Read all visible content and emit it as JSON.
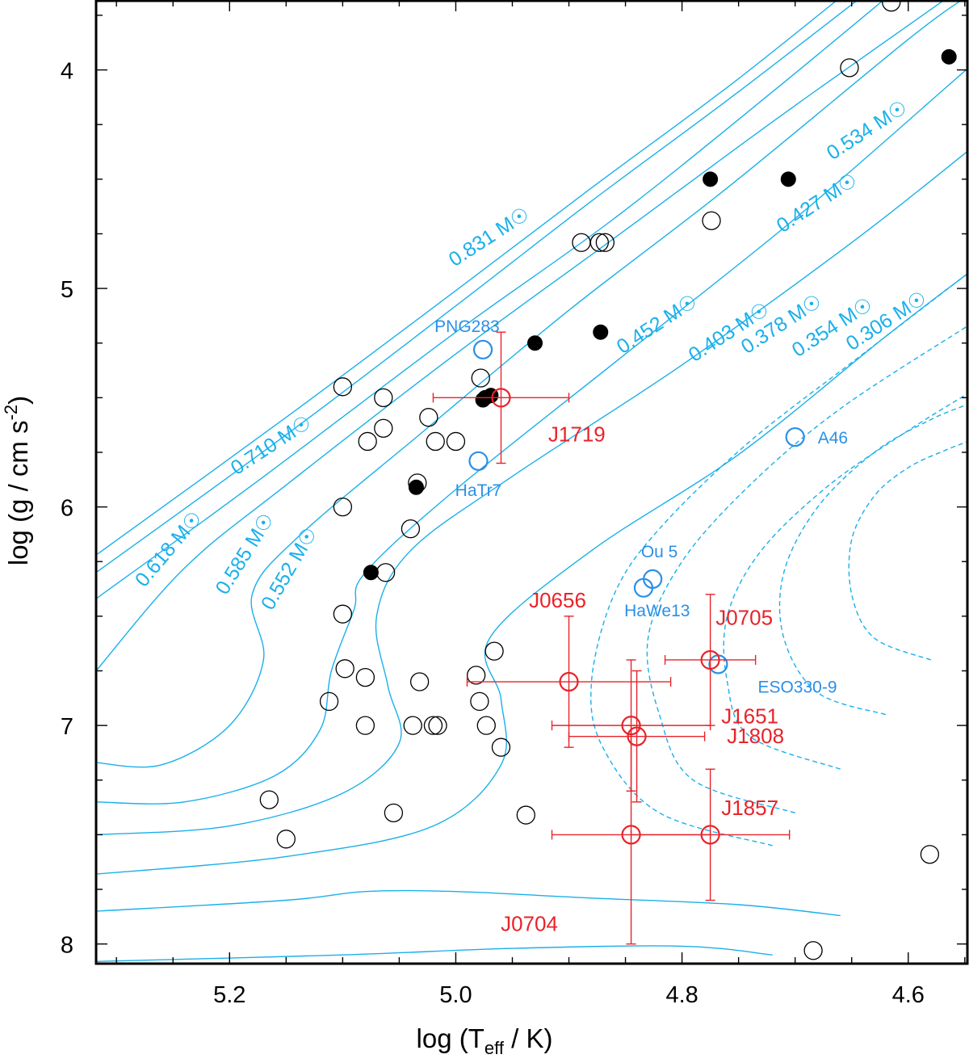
{
  "chart_data": {
    "type": "scatter",
    "title": "",
    "xlabel": "log (T",
    "xlabel_sub": "eff",
    "xlabel_end": " / K)",
    "ylabel": "log (g / cm s",
    "ylabel_sup": "-2",
    "ylabel_end": ")",
    "xlim": [
      5.318,
      4.547
    ],
    "ylim": [
      3.68,
      8.09
    ],
    "x_ticks": [
      5.2,
      5.0,
      4.8,
      4.6
    ],
    "x_tick_labels": [
      "5.2",
      "5.0",
      "4.8",
      "4.6"
    ],
    "y_ticks": [
      4,
      5,
      6,
      7,
      8
    ],
    "y_tick_labels": [
      "4",
      "5",
      "6",
      "7",
      "8"
    ],
    "colors": {
      "track": "#1ab0ea",
      "target": "#e8232a",
      "comparison": "#2b8fe6",
      "sample": "#000000"
    },
    "tracks": [
      {
        "label": "0.831 M☉",
        "style": "solid",
        "points": [
          [
            5.318,
            6.22
          ],
          [
            5.15,
            5.59
          ],
          [
            5.0,
            5.01
          ],
          [
            4.88,
            4.54
          ],
          [
            4.75,
            4.04
          ],
          [
            4.62,
            3.5
          ]
        ]
      },
      {
        "label": "0.710 M☉",
        "style": "solid",
        "points": [
          [
            5.318,
            6.3
          ],
          [
            5.15,
            5.67
          ],
          [
            5.0,
            5.08
          ],
          [
            4.88,
            4.6
          ],
          [
            4.75,
            4.1
          ],
          [
            4.6,
            3.5
          ]
        ]
      },
      {
        "label": "0.618 M☉",
        "style": "solid",
        "points": [
          [
            5.318,
            6.42
          ],
          [
            5.18,
            5.9
          ],
          [
            5.0,
            5.2
          ],
          [
            4.86,
            4.68
          ],
          [
            4.72,
            4.1
          ],
          [
            4.58,
            3.5
          ]
        ]
      },
      {
        "label": "0.585 M☉",
        "style": "solid",
        "points": [
          [
            5.318,
            6.75
          ],
          [
            5.24,
            6.28
          ],
          [
            5.15,
            5.9
          ],
          [
            5.0,
            5.3
          ],
          [
            4.86,
            4.77
          ],
          [
            4.71,
            4.2
          ],
          [
            4.56,
            3.65
          ]
        ]
      },
      {
        "label": "0.552 M☉",
        "style": "solid",
        "points": [
          [
            5.318,
            7.17
          ],
          [
            5.26,
            7.18
          ],
          [
            5.2,
            7.0
          ],
          [
            5.17,
            6.7
          ],
          [
            5.18,
            6.4
          ],
          [
            5.14,
            6.14
          ],
          [
            5.03,
            5.66
          ],
          [
            4.9,
            5.1
          ],
          [
            4.76,
            4.54
          ],
          [
            4.6,
            3.86
          ],
          [
            4.547,
            3.66
          ]
        ]
      },
      {
        "label": "0.534 M☉",
        "style": "solid",
        "points": [
          [
            5.318,
            7.35
          ],
          [
            5.24,
            7.35
          ],
          [
            5.16,
            7.23
          ],
          [
            5.12,
            7.02
          ],
          [
            5.11,
            6.75
          ],
          [
            5.09,
            6.47
          ],
          [
            5.08,
            6.3
          ],
          [
            5.0,
            5.92
          ],
          [
            4.85,
            5.3
          ],
          [
            4.7,
            4.68
          ],
          [
            4.56,
            4.05
          ],
          [
            4.547,
            3.99
          ]
        ]
      },
      {
        "label": "0.452 M☉",
        "style": "solid",
        "points": [
          [
            5.318,
            7.5
          ],
          [
            5.2,
            7.46
          ],
          [
            5.1,
            7.31
          ],
          [
            5.05,
            7.08
          ],
          [
            5.06,
            6.82
          ],
          [
            5.07,
            6.5
          ],
          [
            5.04,
            6.2
          ],
          [
            4.95,
            5.86
          ],
          [
            4.8,
            5.35
          ],
          [
            4.65,
            4.79
          ],
          [
            4.547,
            4.37
          ]
        ]
      },
      {
        "label": "",
        "style": "solid",
        "points": [
          [
            5.318,
            7.68
          ],
          [
            5.15,
            7.6
          ],
          [
            5.02,
            7.46
          ],
          [
            4.96,
            7.18
          ],
          [
            4.96,
            6.88
          ],
          [
            4.97,
            6.6
          ],
          [
            4.88,
            6.2
          ],
          [
            4.75,
            5.76
          ],
          [
            4.62,
            5.22
          ],
          [
            4.547,
            4.93
          ]
        ]
      },
      {
        "label": "",
        "style": "solid",
        "points": [
          [
            5.318,
            7.85
          ],
          [
            5.15,
            7.8
          ],
          [
            5.08,
            7.76
          ],
          [
            5.0,
            7.76
          ],
          [
            4.88,
            7.79
          ],
          [
            4.75,
            7.82
          ],
          [
            4.66,
            7.87
          ]
        ]
      },
      {
        "label": "",
        "style": "solid",
        "points": [
          [
            5.318,
            8.08
          ],
          [
            5.1,
            8.05
          ],
          [
            4.95,
            8.02
          ],
          [
            4.8,
            8.01
          ],
          [
            4.72,
            8.05
          ]
        ]
      },
      {
        "label": "0.427 M☉",
        "style": "dashed",
        "points": [
          [
            4.72,
            7.55
          ],
          [
            4.82,
            7.4
          ],
          [
            4.87,
            7.1
          ],
          [
            4.88,
            6.8
          ],
          [
            4.86,
            6.4
          ],
          [
            4.82,
            6.1
          ],
          [
            4.74,
            5.7
          ],
          [
            4.64,
            5.3
          ],
          [
            4.547,
            4.93
          ]
        ]
      },
      {
        "label": "0.403 M☉",
        "style": "dashed",
        "points": [
          [
            4.7,
            7.4
          ],
          [
            4.79,
            7.25
          ],
          [
            4.82,
            6.95
          ],
          [
            4.83,
            6.6
          ],
          [
            4.8,
            6.25
          ],
          [
            4.74,
            5.9
          ],
          [
            4.66,
            5.55
          ],
          [
            4.547,
            5.17
          ]
        ]
      },
      {
        "label": "0.378 M☉",
        "style": "dashed",
        "points": [
          [
            4.66,
            7.2
          ],
          [
            4.74,
            7.05
          ],
          [
            4.76,
            6.8
          ],
          [
            4.76,
            6.5
          ],
          [
            4.73,
            6.2
          ],
          [
            4.67,
            5.9
          ],
          [
            4.6,
            5.65
          ],
          [
            4.547,
            5.48
          ]
        ]
      },
      {
        "label": "0.354 M☉",
        "style": "dashed",
        "points": [
          [
            4.62,
            6.95
          ],
          [
            4.68,
            6.85
          ],
          [
            4.71,
            6.6
          ],
          [
            4.71,
            6.3
          ],
          [
            4.68,
            6.0
          ],
          [
            4.63,
            5.75
          ],
          [
            4.58,
            5.6
          ],
          [
            4.547,
            5.53
          ]
        ]
      },
      {
        "label": "0.306 M☉",
        "style": "dashed",
        "points": [
          [
            4.58,
            6.7
          ],
          [
            4.63,
            6.6
          ],
          [
            4.65,
            6.4
          ],
          [
            4.65,
            6.15
          ],
          [
            4.63,
            5.95
          ],
          [
            4.6,
            5.82
          ],
          [
            4.567,
            5.74
          ],
          [
            4.547,
            5.7
          ]
        ]
      }
    ],
    "sample_open": [
      [
        5.15,
        7.52
      ],
      [
        5.165,
        7.34
      ],
      [
        5.112,
        6.89
      ],
      [
        5.1,
        6.49
      ],
      [
        5.098,
        6.74
      ],
      [
        5.1,
        6.0
      ],
      [
        5.1,
        5.45
      ],
      [
        5.08,
        6.78
      ],
      [
        5.08,
        7.0
      ],
      [
        5.078,
        5.7
      ],
      [
        5.064,
        5.5
      ],
      [
        5.064,
        5.64
      ],
      [
        5.062,
        6.3
      ],
      [
        5.055,
        7.4
      ],
      [
        5.04,
        6.1
      ],
      [
        5.038,
        7.0
      ],
      [
        5.034,
        5.89
      ],
      [
        5.032,
        6.8
      ],
      [
        5.024,
        5.59
      ],
      [
        5.018,
        5.7
      ],
      [
        5.02,
        7.0
      ],
      [
        5.016,
        7.0
      ],
      [
        5.0,
        5.7
      ],
      [
        4.982,
        6.77
      ],
      [
        4.979,
        6.89
      ],
      [
        4.978,
        5.41
      ],
      [
        4.973,
        7.0
      ],
      [
        4.966,
        6.66
      ],
      [
        4.96,
        7.1
      ],
      [
        4.938,
        7.41
      ],
      [
        4.889,
        4.79
      ],
      [
        4.873,
        4.79
      ],
      [
        4.868,
        4.79
      ],
      [
        4.774,
        4.69
      ],
      [
        4.684,
        8.03
      ],
      [
        4.652,
        3.99
      ],
      [
        4.615,
        3.69
      ],
      [
        4.581,
        7.59
      ]
    ],
    "sample_filled": [
      [
        4.564,
        3.94
      ],
      [
        4.706,
        4.5
      ],
      [
        4.775,
        4.5
      ],
      [
        4.872,
        5.2
      ],
      [
        4.93,
        5.25
      ],
      [
        4.969,
        5.49
      ],
      [
        4.974,
        5.5
      ],
      [
        4.976,
        5.51
      ],
      [
        5.035,
        5.91
      ],
      [
        5.075,
        6.3
      ]
    ],
    "targets": [
      {
        "name": "J1719",
        "x": 4.96,
        "y": 5.5,
        "xerr": 0.06,
        "yerr": 0.3,
        "label_at": [
          4.893,
          5.7
        ]
      },
      {
        "name": "J0656",
        "x": 4.9,
        "y": 6.8,
        "xerr": 0.09,
        "yerr": 0.3,
        "label_at": [
          4.91,
          6.46
        ]
      },
      {
        "name": "J0705",
        "x": 4.775,
        "y": 6.7,
        "xerr": 0.04,
        "yerr": 0.3,
        "label_at": [
          4.745,
          6.54
        ]
      },
      {
        "name": "J1651",
        "x": 4.845,
        "y": 7.0,
        "xerr": 0.07,
        "yerr": 0.3,
        "label_at": [
          4.74,
          6.99
        ]
      },
      {
        "name": "J1808",
        "x": 4.84,
        "y": 7.05,
        "xerr": 0.06,
        "yerr": 0.3,
        "label_at": [
          4.735,
          7.08
        ]
      },
      {
        "name": "J1857",
        "x": 4.775,
        "y": 7.5,
        "xerr": 0.07,
        "yerr": 0.3,
        "label_at": [
          4.74,
          7.41
        ]
      },
      {
        "name": "J0704",
        "x": 4.845,
        "y": 7.5,
        "xerr": 0.07,
        "yerr": 0.5,
        "label_at": [
          4.935,
          7.94
        ]
      }
    ],
    "comparison": [
      {
        "name": "PNG283",
        "x": 4.976,
        "y": 5.28,
        "label_at": [
          4.99,
          5.2
        ]
      },
      {
        "name": "HaTr7",
        "x": 4.98,
        "y": 5.79,
        "label_at": [
          4.98,
          5.95
        ]
      },
      {
        "name": "A46",
        "x": 4.7,
        "y": 5.68,
        "label_at": [
          4.68,
          5.71
        ]
      },
      {
        "name": "Ou 5",
        "x": 4.826,
        "y": 6.33,
        "label_at": [
          4.82,
          6.23
        ]
      },
      {
        "name": "HaWe13",
        "x": 4.834,
        "y": 6.37,
        "label_at": [
          4.822,
          6.5
        ]
      },
      {
        "name": "ESO330-9",
        "x": 4.768,
        "y": 6.72,
        "label_at": [
          4.733,
          6.85
        ]
      }
    ]
  }
}
